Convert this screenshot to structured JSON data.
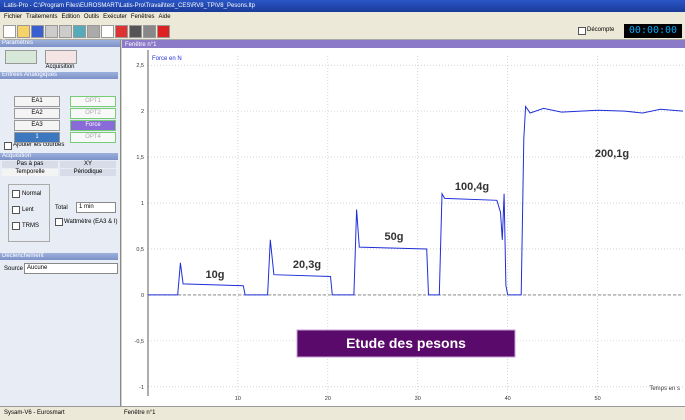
{
  "window": {
    "title": "Latis-Pro - C:\\Program Files\\EUROSMART\\Latis-Pro\\Travail\\test_CES\\RV8_TP\\V8_Pesons.ltp"
  },
  "menu": [
    "Fichier",
    "Traitements",
    "Edition",
    "Outils",
    "Exécuter",
    "Fenêtres",
    "Aide"
  ],
  "toolbar": {
    "countdown": "Décompte",
    "timer": "00:00:00"
  },
  "left_panel": {
    "title": "Paramètres",
    "tab": "Acquisition",
    "analog_title": "Entrées Analogiques",
    "inputs_left": [
      "EA1",
      "EA2",
      "EA3",
      "1"
    ],
    "inputs_right": [
      "OPT1",
      "OPT2",
      "Force",
      "OPT4"
    ],
    "add_curves": "Ajouter les courbes",
    "acq_title": "Acquisition",
    "modes": [
      "Pas à pas",
      "XY",
      "Temporelle",
      "Périodique"
    ],
    "options": [
      "Normal",
      "Lent",
      "TRMS"
    ],
    "total_label": "Total",
    "total_value": "1 min",
    "wattmeter": "Wattmètre (EA3 & I)",
    "trigger_title": "Déclenchement",
    "source_label": "Source",
    "source_value": "Aucune"
  },
  "chart_data": {
    "type": "line",
    "window_title": "Fenêtre n°1",
    "y_label": "Force en N",
    "x_label": "Temps en s",
    "banner": "Etude des pesons",
    "annotations": [
      "10g",
      "20,3g",
      "50g",
      "100,4g",
      "200,1g"
    ],
    "color": "#1f2fd8",
    "grid": true,
    "xlim": [
      0,
      59.5
    ],
    "ylim": [
      -1.1,
      2.6
    ],
    "xticks": [
      10,
      20,
      30,
      40,
      50
    ],
    "yticks": [
      {
        "value": -1,
        "label": "-1"
      },
      {
        "value": -0.5,
        "label": "-0,5"
      },
      0,
      {
        "value": 0.5,
        "label": "0,5"
      },
      1,
      {
        "value": 1.5,
        "label": "1,5"
      },
      2,
      {
        "value": 2.5,
        "label": "2,5"
      }
    ],
    "x": [
      0,
      3.3,
      3.6,
      3.9,
      10.6,
      10.8,
      13.3,
      13.6,
      14,
      20.3,
      20.5,
      22.9,
      23.2,
      23.5,
      31,
      31.2,
      32.4,
      32.7,
      33,
      38.8,
      39.2,
      39.4,
      39.6,
      39.8,
      40,
      41.5,
      41.8,
      42,
      42.5,
      44,
      46,
      50,
      53,
      55,
      57,
      59.5
    ],
    "values": [
      0,
      0,
      0.35,
      0.12,
      0.1,
      0,
      0,
      0.6,
      0.22,
      0.2,
      0,
      0,
      0.93,
      0.52,
      0.5,
      0,
      0,
      1.1,
      1.05,
      1.03,
      0.9,
      0.6,
      1.1,
      0.1,
      0,
      0,
      1.7,
      2.05,
      1.98,
      2.03,
      1.99,
      2.01,
      2,
      1.98,
      2.02,
      2
    ]
  },
  "status": [
    "Sysam-V6 - Eurosmart",
    "Fenêtre n°1"
  ]
}
